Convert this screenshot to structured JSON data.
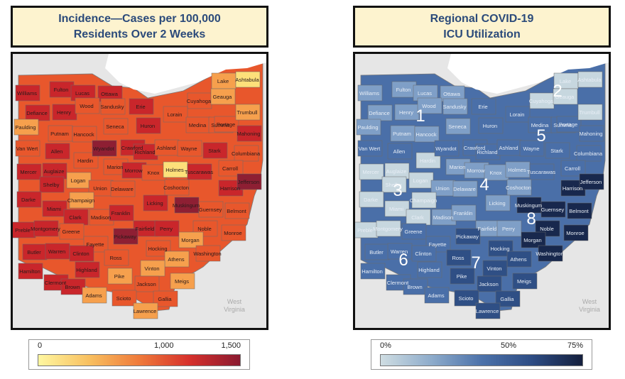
{
  "left": {
    "title_line1": "Incidence—Cases per 100,000",
    "title_line2": "Residents Over 2 Weeks",
    "legend": {
      "min": "0",
      "mid": "1,000",
      "max": "1,500"
    },
    "colors": [
      "#fde07a",
      "#f6a04d",
      "#e8572c",
      "#c9262b",
      "#8e1f33"
    ]
  },
  "right": {
    "title_line1": "Regional COVID-19",
    "title_line2": "ICU Utilization",
    "legend": {
      "min": "0%",
      "mid": "50%",
      "max": "75%"
    },
    "colors": [
      "#c7d7df",
      "#7f9fc7",
      "#4a6fa8",
      "#2f4f85",
      "#18284d"
    ],
    "regions": [
      "1",
      "2",
      "3",
      "4",
      "5",
      "6",
      "7",
      "8"
    ]
  },
  "map_labels": {
    "state_west_line1": "West",
    "state_west_line2": "Virginia"
  },
  "counties": [
    "Williams",
    "Fulton",
    "Lucas",
    "Ottawa",
    "Lake",
    "Ashtabula",
    "Defiance",
    "Henry",
    "Wood",
    "Sandusky",
    "Erie",
    "Cuyahoga",
    "Geauga",
    "Paulding",
    "Putnam",
    "Hancock",
    "Seneca",
    "Huron",
    "Lorain",
    "Medina",
    "Summit",
    "Portage",
    "Trumbull",
    "Van Wert",
    "Allen",
    "Hardin",
    "Wyandot",
    "Crawford",
    "Richland",
    "Ashland",
    "Wayne",
    "Stark",
    "Mahoning",
    "Columbiana",
    "Mercer",
    "Auglaize",
    "Logan",
    "Marion",
    "Morrow",
    "Knox",
    "Holmes",
    "Tuscarawas",
    "Carroll",
    "Shelby",
    "Union",
    "Delaware",
    "Coshocton",
    "Harrison",
    "Jefferson",
    "Darke",
    "Champaign",
    "Miami",
    "Licking",
    "Muskingum",
    "Guernsey",
    "Belmont",
    "Clark",
    "Madison",
    "Franklin",
    "Preble",
    "Montgomery",
    "Greene",
    "Fairfield",
    "Perry",
    "Noble",
    "Monroe",
    "Fayette",
    "Pickaway",
    "Morgan",
    "Butler",
    "Warren",
    "Clinton",
    "Ross",
    "Hocking",
    "Athens",
    "Washington",
    "Hamilton",
    "Highland",
    "Vinton",
    "Meigs",
    "Clermont",
    "Brown",
    "Pike",
    "Jackson",
    "Adams",
    "Scioto",
    "Gallia",
    "Lawrence"
  ]
}
